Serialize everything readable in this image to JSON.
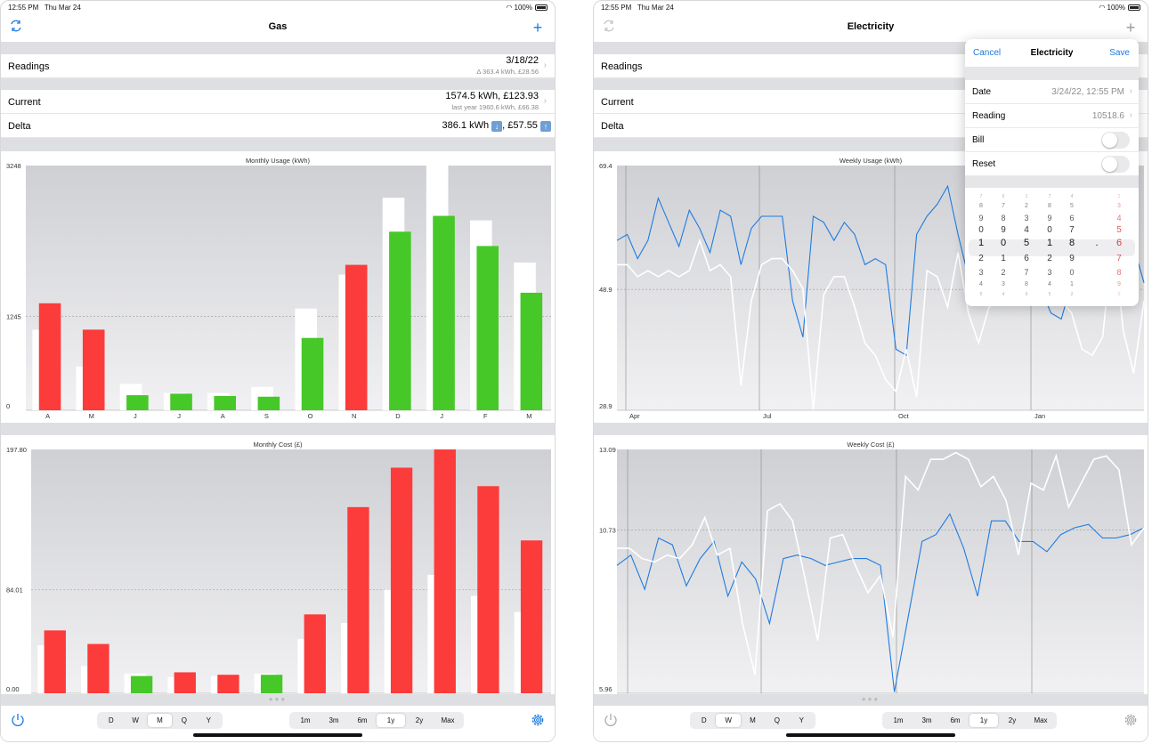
{
  "status": {
    "time": "12:55 PM",
    "date": "Thu Mar 24",
    "battery": "100%"
  },
  "left": {
    "title": "Gas",
    "readings": {
      "label": "Readings",
      "value": "3/18/22",
      "sub": "Δ 363.4 kWh, £28.56"
    },
    "current": {
      "label": "Current",
      "value": "1574.5 kWh, £123.93",
      "sub": "last year 1960.6 kWh, £66.38"
    },
    "delta": {
      "label": "Delta",
      "kwh": "386.1 kWh",
      "cost": ", £57.55"
    },
    "usage_chart_title": "Monthly Usage (kWh)",
    "cost_chart_title": "Monthly Cost (£)"
  },
  "right": {
    "title": "Electricity",
    "readings": {
      "label": "Readings"
    },
    "current": {
      "label": "Current"
    },
    "delta": {
      "label": "Delta"
    },
    "usage_chart_title": "Weekly Usage (kWh)",
    "cost_chart_title": "Weekly Cost (£)"
  },
  "popover": {
    "cancel": "Cancel",
    "title": "Electricity",
    "save": "Save",
    "date_label": "Date",
    "date_value": "3/24/22, 12:55 PM",
    "reading_label": "Reading",
    "reading_value": "10518.6",
    "bill_label": "Bill",
    "reset_label": "Reset",
    "picker_selected": [
      "1",
      "0",
      "5",
      "1",
      "8",
      ".",
      "6"
    ]
  },
  "toolbar": {
    "periods": [
      "D",
      "W",
      "M",
      "Q",
      "Y"
    ],
    "ranges": [
      "1m",
      "3m",
      "6m",
      "1y",
      "2y",
      "Max"
    ],
    "left_selected_period": "M",
    "right_selected_period": "W",
    "selected_range": "1y"
  },
  "colors": {
    "accent": "#1a7ae0",
    "over": "#fc3b3b",
    "under": "#46c829",
    "line": "#1f7be0"
  },
  "icons": {
    "refresh": "refresh-icon",
    "add": "plus-icon",
    "power": "power-icon",
    "settings": "gear-icon"
  },
  "chart_data": [
    {
      "type": "bar",
      "title": "Monthly Usage (kWh)",
      "categories": [
        "A",
        "M",
        "J",
        "J",
        "A",
        "S",
        "O",
        "N",
        "D",
        "J",
        "F",
        "M"
      ],
      "series": [
        {
          "values": [
            1420,
            1070,
            200,
            220,
            190,
            180,
            960,
            1930,
            2370,
            2580,
            2180,
            1560
          ]
        },
        {
          "values": [
            1070,
            580,
            350,
            230,
            230,
            310,
            1350,
            1800,
            2820,
            3248,
            2520,
            1960
          ]
        }
      ],
      "yticks": [
        "3248",
        "1245",
        "0"
      ],
      "ylim": [
        0,
        3248
      ]
    },
    {
      "type": "bar",
      "title": "Monthly Cost (£)",
      "categories": [
        "A",
        "M",
        "J",
        "J",
        "A",
        "S",
        "O",
        "N",
        "D",
        "J",
        "F",
        "M"
      ],
      "series": [
        {
          "values": [
            51,
            40,
            14,
            17,
            15,
            15,
            64,
            151,
            183,
            197.8,
            168,
            124
          ]
        },
        {
          "values": [
            39,
            22,
            16,
            13,
            14,
            16,
            44,
            57,
            84,
            96,
            79,
            66
          ]
        }
      ],
      "yticks": [
        "197.80",
        "84.01",
        "0.00"
      ],
      "ylim": [
        0,
        197.8
      ]
    },
    {
      "type": "line",
      "title": "Weekly Usage (kWh)",
      "x_ticks": [
        "Apr",
        "Jul",
        "Oct",
        "Jan"
      ],
      "yticks": [
        "69.4",
        "48.9",
        "28.9"
      ],
      "ylim": [
        28.9,
        69.4
      ],
      "series": [
        {
          "values": [
            53,
            53,
            51,
            52,
            51,
            52,
            51,
            52,
            57,
            52,
            53,
            51,
            33,
            47,
            53,
            54,
            54,
            52,
            49,
            29,
            48,
            51,
            51,
            46,
            40,
            38,
            34,
            32,
            39,
            31,
            52,
            51,
            46,
            55,
            45,
            40,
            46,
            47,
            54,
            50,
            47,
            50,
            53,
            47,
            45,
            39,
            38,
            41,
            58,
            42,
            35,
            47
          ]
        },
        {
          "values": [
            57,
            58,
            54,
            57,
            64,
            60,
            56,
            62,
            59,
            55,
            62,
            61,
            53,
            59,
            61,
            61,
            61,
            47,
            41,
            61,
            60,
            57,
            60,
            58,
            53,
            54,
            53,
            39,
            38,
            58,
            61,
            63,
            66,
            58,
            51,
            53,
            61,
            67,
            66,
            57,
            59,
            49,
            45,
            44,
            50,
            47,
            61,
            63,
            54,
            58,
            56,
            50
          ]
        }
      ]
    },
    {
      "type": "line",
      "title": "Weekly Cost (£)",
      "yticks": [
        "13.09",
        "10.73",
        "5.96"
      ],
      "ylim": [
        5.96,
        13.09
      ],
      "series": [
        {
          "values": [
            10.2,
            10.2,
            9.9,
            9.8,
            10.0,
            9.9,
            10.3,
            11.1,
            10.0,
            10.2,
            8.0,
            6.5,
            11.3,
            11.5,
            11.0,
            9.3,
            7.5,
            10.5,
            10.6,
            9.7,
            8.9,
            9.4,
            7.6,
            12.3,
            11.9,
            12.8,
            12.8,
            13.0,
            12.8,
            12.0,
            12.3,
            11.6,
            10.0,
            12.1,
            11.9,
            12.9,
            11.4,
            12.1,
            12.8,
            12.9,
            12.5,
            10.3,
            10.8
          ]
        },
        {
          "values": [
            9.7,
            10.0,
            9.0,
            10.5,
            10.3,
            9.1,
            9.9,
            10.4,
            8.8,
            9.8,
            9.3,
            8.0,
            9.9,
            10.0,
            9.9,
            9.7,
            9.8,
            9.9,
            9.9,
            9.7,
            6.0,
            8.2,
            10.4,
            10.6,
            11.2,
            10.2,
            8.8,
            11.0,
            11.0,
            10.4,
            10.4,
            10.1,
            10.6,
            10.8,
            10.9,
            10.5,
            10.5,
            10.6,
            10.8
          ]
        }
      ]
    }
  ]
}
